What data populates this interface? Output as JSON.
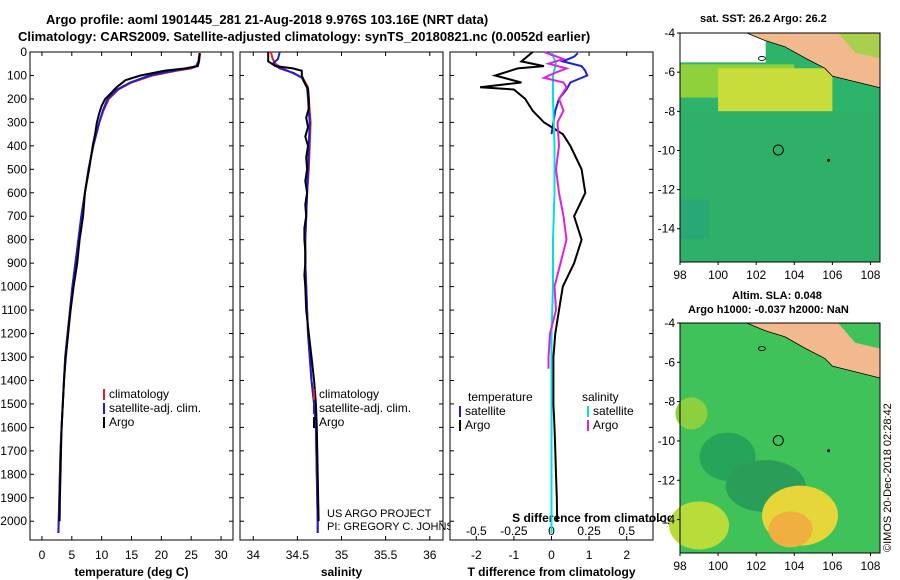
{
  "header": {
    "line1": "Argo profile: aoml 1901445_281 21-Aug-2018 9.976S 103.16E (NRT data)",
    "line2": "Climatology: CARS2009. Satellite-adjusted climatology: synTS_20180821.nc (0.0052d earlier)"
  },
  "colors": {
    "climatology": "#e0201e",
    "satellite": "#1c1cdc",
    "argo": "#000000",
    "salinity_satellite": "#00e0e0",
    "salinity_argo": "#e020e0"
  },
  "depth_ticks": [
    "0",
    "100",
    "200",
    "300",
    "400",
    "500",
    "600",
    "700",
    "800",
    "900",
    "1000",
    "1100",
    "1200",
    "1300",
    "1400",
    "1500",
    "1600",
    "1700",
    "1800",
    "1900",
    "2000"
  ],
  "chart_data": [
    {
      "type": "line",
      "id": "temperature",
      "xlabel": "temperature (deg C)",
      "xticks": [
        "0",
        "5",
        "10",
        "15",
        "20",
        "25",
        "30"
      ],
      "xlim": [
        -2,
        32
      ],
      "ylim": [
        0,
        2080
      ],
      "legend": [
        "climatology",
        "satellite-adj. clim.",
        "Argo"
      ],
      "legend_placement": "lower-center",
      "series": [
        {
          "name": "climatology",
          "color": "#e0201e",
          "depth": [
            5,
            40,
            60,
            70,
            80,
            100,
            130,
            160,
            200,
            250,
            300,
            400,
            500,
            600,
            700,
            800,
            900,
            1000,
            1100,
            1200,
            1300,
            1400,
            1500,
            1600,
            1700,
            1800,
            1900,
            2000,
            2050
          ],
          "values": [
            26.5,
            26.3,
            26.0,
            25.0,
            22.5,
            18.5,
            15.0,
            12.8,
            11.2,
            10.3,
            9.6,
            8.6,
            7.8,
            7.2,
            6.6,
            6.1,
            5.6,
            5.1,
            4.7,
            4.3,
            3.9,
            3.7,
            3.5,
            3.3,
            3.1,
            3.0,
            2.9,
            2.8,
            2.75
          ]
        },
        {
          "name": "satellite-adj. clim.",
          "color": "#1c1cdc",
          "depth": [
            5,
            40,
            60,
            70,
            80,
            100,
            130,
            160,
            200,
            250,
            300,
            400,
            500,
            600,
            700,
            800,
            900,
            1000,
            1100,
            1200,
            1300,
            1400,
            1500,
            1600,
            1700,
            1800,
            1900,
            2000,
            2050
          ],
          "values": [
            26.4,
            26.2,
            25.8,
            24.5,
            22.0,
            18.0,
            14.8,
            12.6,
            11.0,
            10.2,
            9.6,
            8.6,
            7.8,
            7.2,
            6.6,
            6.1,
            5.6,
            5.1,
            4.7,
            4.3,
            3.9,
            3.7,
            3.5,
            3.3,
            3.1,
            3.0,
            2.9,
            2.8,
            2.75
          ]
        },
        {
          "name": "Argo",
          "color": "#000000",
          "depth": [
            5,
            40,
            60,
            70,
            80,
            100,
            120,
            150,
            180,
            200,
            230,
            260,
            300,
            350,
            400,
            500,
            600,
            700,
            800,
            900,
            1000,
            1100,
            1200,
            1300,
            1400,
            1500,
            1600,
            1700,
            1800,
            1900,
            2000
          ],
          "values": [
            26.4,
            26.3,
            26.1,
            24.0,
            20.5,
            16.5,
            14.0,
            12.5,
            11.4,
            10.6,
            10.0,
            9.6,
            9.2,
            8.9,
            8.5,
            7.9,
            7.2,
            6.9,
            6.3,
            5.9,
            5.3,
            4.8,
            4.4,
            4.0,
            3.7,
            3.5,
            3.3,
            3.2,
            3.1,
            3.0,
            2.95
          ]
        }
      ]
    },
    {
      "type": "line",
      "id": "salinity",
      "xlabel": "salinity",
      "xticks": [
        "34",
        "34.5",
        "35",
        "35.5",
        "36"
      ],
      "xlim": [
        33.85,
        36.15
      ],
      "ylim": [
        0,
        2080
      ],
      "legend": [
        "climatology",
        "satellite-adj. clim.",
        "Argo"
      ],
      "legend_placement": "lower-center",
      "annotations": [
        "US ARGO PROJECT",
        "PI: GREGORY C. JOHNSON"
      ],
      "series": [
        {
          "name": "climatology",
          "color": "#e0201e",
          "depth": [
            0,
            30,
            50,
            70,
            90,
            110,
            150,
            200,
            250,
            300,
            400,
            500,
            600,
            700,
            800,
            900,
            1000,
            1200,
            1400,
            1500,
            1600,
            1800,
            2000,
            2050
          ],
          "values": [
            34.2,
            34.22,
            34.25,
            34.33,
            34.45,
            34.56,
            34.62,
            34.63,
            34.64,
            34.65,
            34.64,
            34.63,
            34.61,
            34.6,
            34.59,
            34.59,
            34.6,
            34.62,
            34.66,
            34.69,
            34.71,
            34.72,
            34.73,
            34.73
          ]
        },
        {
          "name": "satellite-adj. clim.",
          "color": "#1c1cdc",
          "depth": [
            0,
            30,
            50,
            70,
            90,
            110,
            150,
            200,
            250,
            300,
            400,
            500,
            600,
            700,
            800,
            900,
            1000,
            1200,
            1400,
            1500,
            1600,
            1800,
            2000,
            2050
          ],
          "values": [
            34.3,
            34.28,
            34.22,
            34.3,
            34.46,
            34.55,
            34.61,
            34.62,
            34.63,
            34.64,
            34.63,
            34.62,
            34.61,
            34.6,
            34.59,
            34.59,
            34.6,
            34.62,
            34.66,
            34.69,
            34.71,
            34.72,
            34.73,
            34.73
          ]
        },
        {
          "name": "Argo",
          "color": "#000000",
          "depth": [
            0,
            40,
            60,
            70,
            80,
            100,
            130,
            160,
            200,
            240,
            280,
            320,
            360,
            400,
            450,
            500,
            550,
            600,
            650,
            700,
            750,
            800,
            850,
            900,
            950,
            1000,
            1100,
            1200,
            1300,
            1400,
            1500,
            1600,
            1800,
            2000
          ],
          "values": [
            34.17,
            34.17,
            34.25,
            34.45,
            34.55,
            34.55,
            34.58,
            34.62,
            34.63,
            34.63,
            34.6,
            34.62,
            34.59,
            34.62,
            34.6,
            34.61,
            34.59,
            34.61,
            34.59,
            34.6,
            34.58,
            34.58,
            34.59,
            34.59,
            34.58,
            34.59,
            34.6,
            34.63,
            34.66,
            34.69,
            34.71,
            34.72,
            34.73,
            34.74
          ]
        }
      ]
    },
    {
      "type": "line",
      "id": "differences",
      "xlabel": "T difference from climatology",
      "xlabel2": "S difference from climatology",
      "xticks": [
        "-2",
        "-1",
        "0",
        "1",
        "2"
      ],
      "xticks2": [
        "-0.5",
        "-0.25",
        "0",
        "0.25",
        "0.5"
      ],
      "xlim": [
        -2.7,
        2.7
      ],
      "xlim2": [
        -0.675,
        0.675
      ],
      "ylim": [
        0,
        2080
      ],
      "legend_left_title": "temperature",
      "legend_right_title": "salinity",
      "legend_left": [
        "satellite",
        "Argo"
      ],
      "legend_right": [
        "satellite",
        "Argo"
      ],
      "series": [
        {
          "name": "temperature satellite",
          "color": "#1c1cdc",
          "axis": "T",
          "depth": [
            5,
            20,
            40,
            60,
            80,
            100,
            130,
            160,
            200,
            250,
            300,
            350
          ],
          "values": [
            0.7,
            0.6,
            0.3,
            0.8,
            0.9,
            0.95,
            0.5,
            0.4,
            0.2,
            0.1,
            0.05,
            0.0
          ]
        },
        {
          "name": "temperature Argo",
          "color": "#000000",
          "axis": "T",
          "depth": [
            0,
            40,
            60,
            70,
            80,
            100,
            130,
            150,
            160,
            200,
            250,
            300,
            350,
            400,
            500,
            600,
            700,
            800,
            900,
            1000,
            1100,
            1200,
            1300,
            1400,
            1500,
            1600,
            1700,
            1800,
            1900,
            2000
          ],
          "values": [
            -0.5,
            -0.8,
            -0.2,
            -0.9,
            -1.1,
            -1.5,
            -0.8,
            -1.9,
            -1.0,
            -0.7,
            -0.5,
            -0.2,
            0.3,
            0.5,
            0.8,
            0.9,
            0.6,
            0.8,
            0.6,
            0.3,
            0.2,
            0.1,
            0.05,
            0.05,
            0.05,
            0.08,
            0.1,
            0.12,
            0.14,
            0.15
          ]
        },
        {
          "name": "salinity satellite",
          "color": "#00e0e0",
          "axis": "S",
          "depth": [
            0,
            50,
            100,
            200,
            400,
            600,
            800,
            1000,
            1200,
            1400,
            1600,
            1800,
            2000,
            2050
          ],
          "values": [
            0.0,
            0.03,
            0.01,
            0.01,
            0.02,
            0.02,
            0.01,
            0.01,
            0.0,
            0.0,
            0.0,
            0.0,
            0.0,
            0.0
          ]
        },
        {
          "name": "salinity Argo",
          "color": "#e020e0",
          "axis": "S",
          "depth": [
            0,
            30,
            50,
            70,
            90,
            110,
            130,
            150,
            200,
            250,
            300,
            400,
            500,
            600,
            700,
            800,
            900,
            1000,
            1100,
            1200,
            1300,
            1350
          ],
          "values": [
            -0.05,
            0.08,
            -0.02,
            0.1,
            0.02,
            -0.05,
            0.08,
            0.1,
            0.05,
            0.08,
            0.04,
            0.05,
            0.03,
            0.05,
            0.08,
            0.1,
            0.06,
            0.02,
            0.03,
            -0.01,
            -0.02,
            -0.02
          ]
        }
      ]
    }
  ],
  "maps": [
    {
      "title": "sat. SST: 26.2 Argo: 26.2",
      "xticks": [
        "98",
        "100",
        "102",
        "104",
        "106",
        "108"
      ],
      "yticks": [
        "-4",
        "-6",
        "-8",
        "-10",
        "-12",
        "-14"
      ]
    },
    {
      "title_line1": "Altim. SLA: 0.048",
      "title_line2": "Argo h1000: -0.037 h2000: NaN",
      "xticks": [
        "98",
        "100",
        "102",
        "104",
        "106",
        "108"
      ],
      "yticks": [
        "-4",
        "-6",
        "-8",
        "-10",
        "-12",
        "-14"
      ]
    }
  ],
  "footer_stamp": "©IMOS 20-Dec-2018 02:28:42"
}
